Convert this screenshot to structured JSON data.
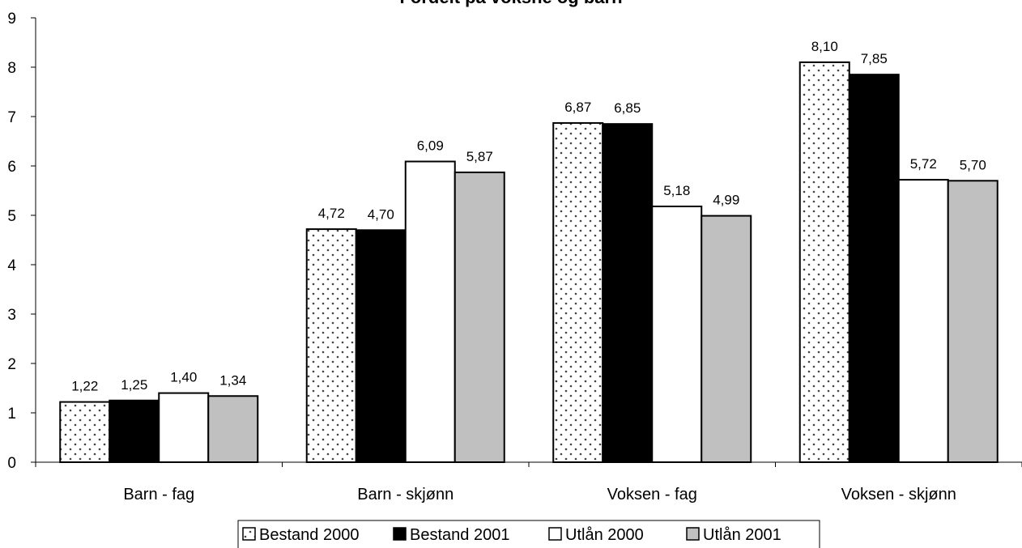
{
  "chart_data": {
    "type": "bar",
    "title": "Fordelt på voksne og barn",
    "categories": [
      "Barn - fag",
      "Barn - skjønn",
      "Voksen - fag",
      "Voksen - skjønn"
    ],
    "series": [
      {
        "name": "Bestand 2000",
        "values": [
          1.22,
          4.72,
          6.87,
          8.1
        ],
        "labels": [
          "1,22",
          "4,72",
          "6,87",
          "8,10"
        ],
        "fill": "dotted"
      },
      {
        "name": "Bestand 2001",
        "values": [
          1.25,
          4.7,
          6.85,
          7.85
        ],
        "labels": [
          "1,25",
          "4,70",
          "6,85",
          "7,85"
        ],
        "fill": "#000000"
      },
      {
        "name": "Utlån 2000",
        "values": [
          1.4,
          6.09,
          5.18,
          5.72
        ],
        "labels": [
          "1,40",
          "6,09",
          "5,18",
          "5,72"
        ],
        "fill": "#ffffff"
      },
      {
        "name": "Utlån 2001",
        "values": [
          1.34,
          5.87,
          4.99,
          5.7
        ],
        "labels": [
          "1,34",
          "5,87",
          "4,99",
          "5,70"
        ],
        "fill": "#c0c0c0"
      }
    ],
    "ylim": [
      0,
      9
    ],
    "yticks": [
      "0",
      "1",
      "2",
      "3",
      "4",
      "5",
      "6",
      "7",
      "8",
      "9"
    ],
    "grid": false,
    "legend_position": "bottom"
  }
}
